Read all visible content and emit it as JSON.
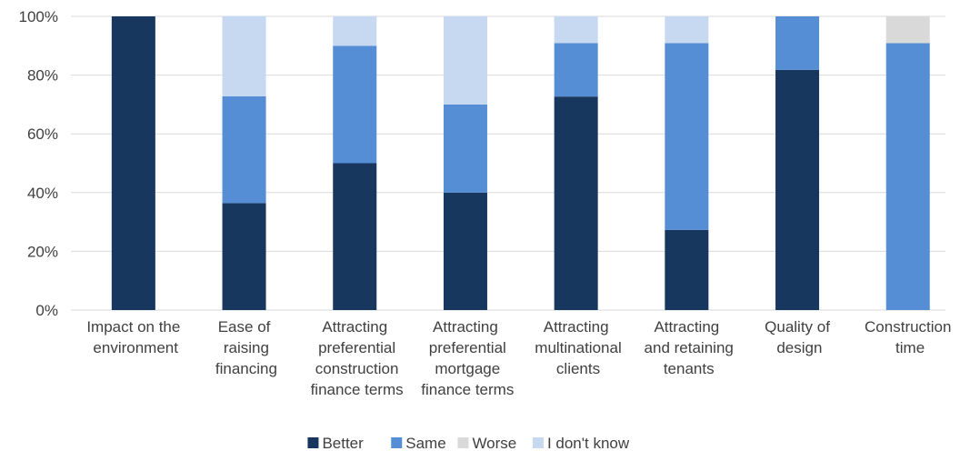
{
  "chart_data": {
    "type": "stacked_bar",
    "categories": [
      "Impact on the environment",
      "Ease of raising financing",
      "Attracting preferential construction finance terms",
      "Attracting preferential mortgage finance terms",
      "Attracting multinational clients",
      "Attracting and retaining tenants",
      "Quality of design",
      "Construction time"
    ],
    "series": [
      {
        "name": "Better",
        "color": "#17375e",
        "values": [
          100,
          36.4,
          50,
          40,
          72.7,
          27.3,
          81.8,
          0
        ]
      },
      {
        "name": "Same",
        "color": "#558ed5",
        "values": [
          0,
          36.4,
          40,
          30,
          18.2,
          63.6,
          18.2,
          90.9
        ]
      },
      {
        "name": "Worse",
        "color": "#d9d9d9",
        "values": [
          0,
          0,
          0,
          0,
          0,
          0,
          0,
          9.1
        ]
      },
      {
        "name": "I don't know",
        "color": "#c6d9f1",
        "values": [
          0,
          27.3,
          10,
          30,
          9.1,
          9.1,
          0,
          0
        ]
      }
    ],
    "ylim": [
      0,
      100
    ],
    "yticks": [
      {
        "value": 0,
        "label": "0%"
      },
      {
        "value": 20,
        "label": "20%"
      },
      {
        "value": 40,
        "label": "40%"
      },
      {
        "value": 60,
        "label": "60%"
      },
      {
        "value": 80,
        "label": "80%"
      },
      {
        "value": 100,
        "label": "100%"
      }
    ],
    "grid": true,
    "legend": "bottom"
  }
}
